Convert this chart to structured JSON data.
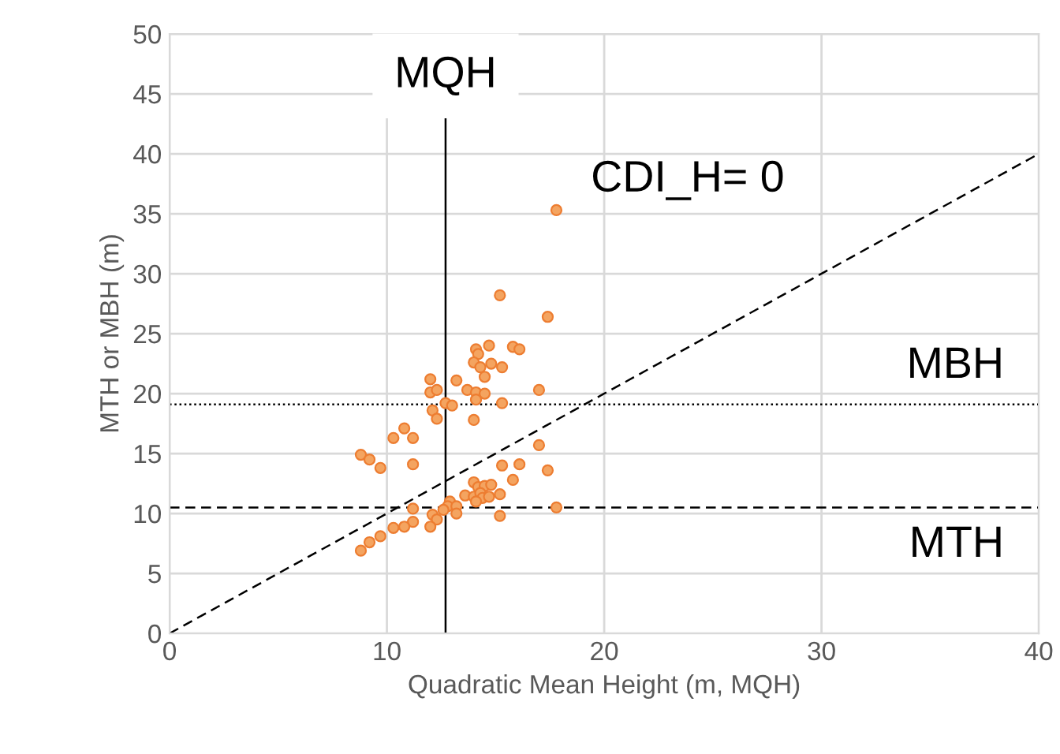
{
  "chart_data": {
    "type": "scatter",
    "xlabel": "Quadratic Mean Height (m, MQH)",
    "ylabel": "MTH or MBH (m)",
    "xlim": [
      0,
      40
    ],
    "xticks": [
      0,
      10,
      20,
      30,
      40
    ],
    "ylim": [
      0,
      50
    ],
    "yticks": [
      0,
      5,
      10,
      15,
      20,
      25,
      30,
      35,
      40,
      45,
      50
    ],
    "grid": true,
    "series": [
      {
        "marker": "circle",
        "color": "#f4a460",
        "x": [
          17.8,
          15.2,
          17.4,
          14.1,
          14.7,
          14.2,
          15.8,
          16.1,
          14.0,
          14.3,
          14.8,
          15.3,
          14.5,
          12.0,
          12.0,
          12.3,
          13.2,
          13.7,
          14.1,
          14.5,
          14.1,
          17.0,
          12.7,
          13.0,
          15.3,
          12.1,
          12.3,
          14.0,
          10.8,
          10.3,
          11.2,
          8.8,
          9.2,
          9.7,
          11.2,
          15.3,
          16.1,
          17.0,
          17.4,
          15.8,
          14.0,
          14.2,
          14.5,
          14.8,
          13.6,
          14.0,
          14.3,
          14.4,
          14.7,
          15.2,
          14.1,
          12.9,
          12.8,
          13.2,
          13.2,
          12.6,
          11.2,
          17.8,
          15.2,
          12.1,
          12.3,
          12.0,
          11.2,
          10.8,
          10.3,
          9.7,
          9.2,
          8.8
        ],
        "values": [
          35.3,
          28.2,
          26.4,
          23.7,
          24.0,
          23.3,
          23.9,
          23.7,
          22.6,
          22.2,
          22.5,
          22.2,
          21.4,
          21.2,
          20.1,
          20.3,
          21.1,
          20.3,
          20.1,
          20.0,
          19.5,
          20.3,
          19.2,
          19.0,
          19.2,
          18.6,
          17.9,
          17.8,
          17.1,
          16.3,
          16.3,
          14.9,
          14.5,
          13.8,
          14.1,
          14.0,
          14.1,
          15.7,
          13.6,
          12.8,
          12.6,
          12.2,
          12.3,
          12.4,
          11.5,
          11.4,
          11.7,
          11.3,
          11.4,
          11.6,
          11.0,
          11.0,
          10.6,
          10.6,
          10.0,
          10.3,
          10.4,
          10.5,
          9.8,
          9.9,
          9.5,
          8.9,
          9.3,
          8.9,
          8.8,
          8.1,
          7.6,
          6.9
        ]
      },
      {
        "type": "line",
        "name": "CDI_H= 0",
        "color": "#000000",
        "line_style": "dashed",
        "marker": "none",
        "x": [
          0,
          40
        ],
        "values": [
          0,
          40
        ]
      }
    ],
    "ref_lines": [
      {
        "axis": "y",
        "value": 19.1,
        "label": "MBH",
        "line_style": "dotted",
        "color": "#000000"
      },
      {
        "axis": "y",
        "value": 10.5,
        "label": "MTH",
        "line_style": "dashed",
        "color": "#000000"
      },
      {
        "axis": "x",
        "value": 12.7,
        "label": "MQH",
        "line_style": "solid",
        "color": "#000000"
      }
    ]
  }
}
